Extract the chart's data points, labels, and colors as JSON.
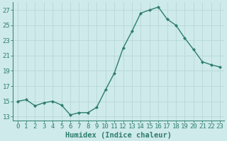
{
  "x": [
    0,
    1,
    2,
    3,
    4,
    5,
    6,
    7,
    8,
    9,
    10,
    11,
    12,
    13,
    14,
    15,
    16,
    17,
    18,
    19,
    20,
    21,
    22,
    23
  ],
  "y": [
    15.0,
    15.2,
    14.4,
    14.8,
    15.0,
    14.5,
    13.2,
    13.5,
    13.5,
    14.2,
    16.5,
    18.7,
    22.0,
    24.2,
    26.6,
    27.0,
    27.4,
    25.8,
    25.0,
    23.3,
    21.8,
    20.2,
    19.8,
    19.5
  ],
  "line_color": "#2e7d6e",
  "marker": "D",
  "marker_size": 2.0,
  "bg_color": "#ceeaea",
  "grid_color": "#b8d8d8",
  "xlabel": "Humidex (Indice chaleur)",
  "ylim": [
    12.5,
    28.0
  ],
  "xlim": [
    -0.5,
    23.5
  ],
  "yticks": [
    13,
    15,
    17,
    19,
    21,
    23,
    25,
    27
  ],
  "xticks": [
    0,
    1,
    2,
    3,
    4,
    5,
    6,
    7,
    8,
    9,
    10,
    11,
    12,
    13,
    14,
    15,
    16,
    17,
    18,
    19,
    20,
    21,
    22,
    23
  ],
  "xlabel_fontsize": 7.5,
  "tick_fontsize": 6.5,
  "line_width": 1.0
}
